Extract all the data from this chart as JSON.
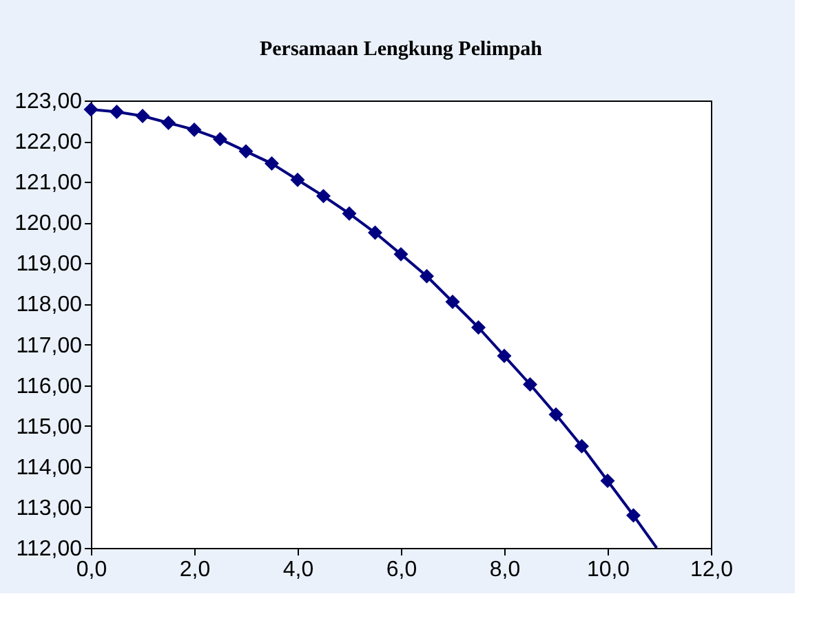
{
  "chart_data": {
    "type": "line",
    "title": "Persamaan Lengkung Pelimpah",
    "series": [
      {
        "color": "#000080",
        "marker": "none",
        "x": [
          0,
          0.5,
          1,
          1.5,
          2,
          2.5,
          3,
          3.5,
          4,
          4.5,
          5,
          5.5,
          6,
          6.5,
          7,
          7.5,
          8,
          8.5,
          9,
          9.5,
          10,
          10.5,
          10.95
        ],
        "values": [
          122.78,
          122.72,
          122.62,
          122.45,
          122.28,
          122.05,
          121.75,
          121.45,
          121.05,
          120.65,
          120.22,
          119.75,
          119.22,
          118.68,
          118.05,
          117.42,
          116.72,
          116.02,
          115.28,
          114.5,
          113.65,
          112.8,
          112.0
        ]
      },
      {
        "type": "scatter",
        "color": "#000080",
        "marker": "diamond",
        "x": [
          0,
          0.5,
          1,
          1.5,
          2,
          2.5,
          3,
          3.5,
          4,
          4.5,
          5,
          5.5,
          6,
          6.5,
          7,
          7.5,
          8,
          8.5,
          9,
          9.5,
          10,
          10.5
        ],
        "values": [
          122.78,
          122.72,
          122.62,
          122.45,
          122.28,
          122.05,
          121.75,
          121.45,
          121.05,
          120.65,
          120.22,
          119.75,
          119.22,
          118.68,
          118.05,
          117.42,
          116.72,
          116.02,
          115.28,
          114.5,
          113.65,
          112.8
        ]
      }
    ],
    "xlim": [
      0,
      12
    ],
    "xticks": [
      {
        "value": 0,
        "label": "0,0"
      },
      {
        "value": 2,
        "label": "2,0"
      },
      {
        "value": 4,
        "label": "4,0"
      },
      {
        "value": 6,
        "label": "6,0"
      },
      {
        "value": 8,
        "label": "8,0"
      },
      {
        "value": 10,
        "label": "10,0"
      },
      {
        "value": 12,
        "label": "12,0"
      }
    ],
    "ylim": [
      112,
      123
    ],
    "yticks": [
      {
        "value": 112,
        "label": "112,00"
      },
      {
        "value": 113,
        "label": "113,00"
      },
      {
        "value": 114,
        "label": "114,00"
      },
      {
        "value": 115,
        "label": "115,00"
      },
      {
        "value": 116,
        "label": "116,00"
      },
      {
        "value": 117,
        "label": "117,00"
      },
      {
        "value": 118,
        "label": "118,00"
      },
      {
        "value": 119,
        "label": "119,00"
      },
      {
        "value": 120,
        "label": "120,00"
      },
      {
        "value": 121,
        "label": "121,00"
      },
      {
        "value": 122,
        "label": "122,00"
      },
      {
        "value": 123,
        "label": "123,00"
      }
    ],
    "grid": false
  }
}
